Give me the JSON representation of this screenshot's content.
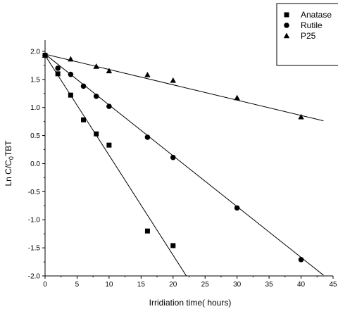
{
  "chart_data": {
    "type": "scatter",
    "xlabel": "Irridiation time( hours)",
    "ylabel": {
      "main": "Ln C/C",
      "sub": "0",
      "tail": "TBT"
    },
    "xlim": [
      0,
      45
    ],
    "ylim": [
      -2.0,
      2.2
    ],
    "xticks": [
      "0",
      "5",
      "10",
      "15",
      "20",
      "25",
      "30",
      "35",
      "40",
      "45"
    ],
    "yticks": [
      "-2.0",
      "-1.5",
      "-1.0",
      "-0.5",
      "0.0",
      "0.5",
      "1.0",
      "1.5",
      "2.0"
    ],
    "legend_position": "top-right",
    "series": [
      {
        "name": "Anatase",
        "marker": "square",
        "x": [
          0,
          2,
          4,
          6,
          8,
          10,
          16,
          20
        ],
        "y": [
          1.93,
          1.6,
          1.22,
          0.78,
          0.53,
          0.33,
          -1.2,
          -1.46
        ],
        "fit": {
          "intercept": 1.93,
          "slope": -0.178
        }
      },
      {
        "name": "Rutile",
        "marker": "circle",
        "x": [
          0,
          2,
          4,
          6,
          8,
          10,
          16,
          20,
          30,
          40
        ],
        "y": [
          1.93,
          1.7,
          1.59,
          1.38,
          1.2,
          1.02,
          0.47,
          0.11,
          -0.79,
          -1.71
        ],
        "fit": {
          "intercept": 1.95,
          "slope": -0.0905
        }
      },
      {
        "name": "P25",
        "marker": "triangle",
        "x": [
          0,
          4,
          8,
          10,
          16,
          20,
          30,
          40
        ],
        "y": [
          1.93,
          1.86,
          1.73,
          1.65,
          1.58,
          1.48,
          1.17,
          0.83
        ],
        "fit": {
          "intercept": 1.95,
          "slope": -0.0273
        }
      }
    ]
  }
}
